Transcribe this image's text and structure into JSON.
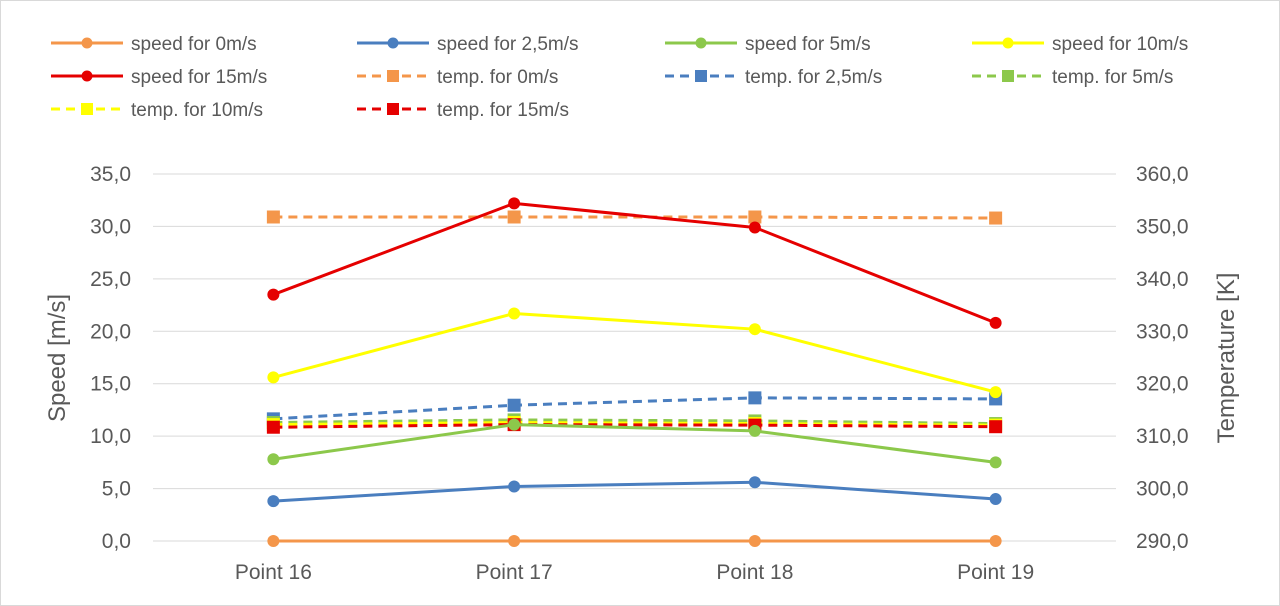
{
  "chart_data": {
    "type": "line",
    "title": "",
    "categories": [
      "Point 16",
      "Point 17",
      "Point 18",
      "Point 19"
    ],
    "y_left": {
      "label": "Speed [m/s]",
      "min": 0,
      "max": 35,
      "ticks": [
        "0,0",
        "5,0",
        "10,0",
        "15,0",
        "20,0",
        "25,0",
        "30,0",
        "35,0"
      ]
    },
    "y_right": {
      "label": "Temperature [K]",
      "min": 290,
      "max": 360,
      "ticks": [
        "290,0",
        "300,0",
        "310,0",
        "320,0",
        "330,0",
        "340,0",
        "350,0",
        "360,0"
      ]
    },
    "grid": true,
    "legend_position": "top",
    "series": [
      {
        "name": "speed for 0m/s",
        "axis": "left",
        "style": "solid",
        "marker": "circle",
        "color": "#f4964a",
        "values": [
          0.0,
          0.0,
          0.0,
          0.0
        ]
      },
      {
        "name": "speed for 2,5m/s",
        "axis": "left",
        "style": "solid",
        "marker": "circle",
        "color": "#4a7ebf",
        "values": [
          3.8,
          5.2,
          5.6,
          4.0
        ]
      },
      {
        "name": "speed for 5m/s",
        "axis": "left",
        "style": "solid",
        "marker": "circle",
        "color": "#8cc84b",
        "values": [
          7.8,
          11.1,
          10.5,
          7.5
        ]
      },
      {
        "name": "speed for 10m/s",
        "axis": "left",
        "style": "solid",
        "marker": "circle",
        "color": "#ffff00",
        "values": [
          15.6,
          21.7,
          20.2,
          14.2
        ]
      },
      {
        "name": "speed for 15m/s",
        "axis": "left",
        "style": "solid",
        "marker": "circle",
        "color": "#e50000",
        "values": [
          23.5,
          32.2,
          29.9,
          20.8
        ]
      },
      {
        "name": "temp. for 0m/s",
        "axis": "right",
        "style": "dashed",
        "marker": "square",
        "color": "#f4964a",
        "values": [
          351.8,
          351.8,
          351.8,
          351.6
        ]
      },
      {
        "name": "temp. for 2,5m/s",
        "axis": "right",
        "style": "dashed",
        "marker": "square",
        "color": "#4a7ebf",
        "values": [
          313.3,
          315.9,
          317.3,
          317.1
        ]
      },
      {
        "name": "temp. for 5m/s",
        "axis": "right",
        "style": "dashed",
        "marker": "square",
        "color": "#8cc84b",
        "values": [
          312.6,
          313.1,
          312.9,
          312.4
        ]
      },
      {
        "name": "temp. for 10m/s",
        "axis": "right",
        "style": "dashed",
        "marker": "square",
        "color": "#ffff00",
        "values": [
          312.2,
          312.6,
          312.4,
          312.1
        ]
      },
      {
        "name": "temp. for 15m/s",
        "axis": "right",
        "style": "dashed",
        "marker": "square",
        "color": "#e50000",
        "values": [
          311.7,
          312.2,
          312.1,
          311.8
        ]
      }
    ]
  }
}
